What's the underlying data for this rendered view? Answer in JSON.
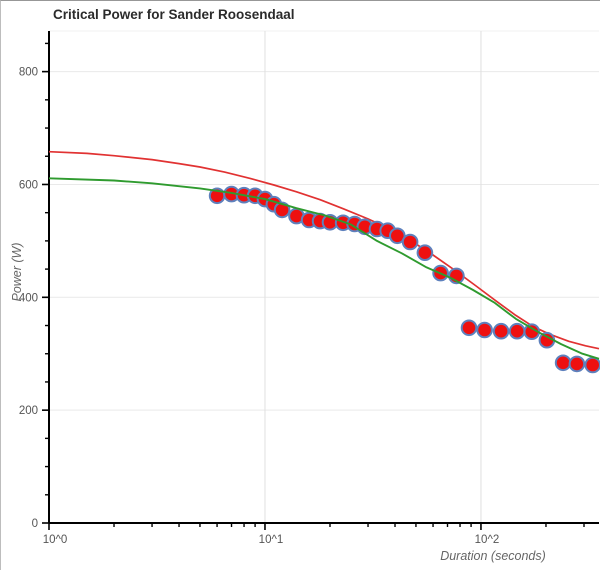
{
  "chart_data": {
    "type": "scatter",
    "title": "Critical Power for Sander Roosendaal",
    "xlabel": "Duration (seconds)",
    "ylabel": "Power (W)",
    "x_scale": "log10",
    "xlim": [
      1,
      352
    ],
    "ylim": [
      0,
      872
    ],
    "grid": {
      "h_lines": [
        200,
        400,
        600,
        800
      ],
      "v_lines": [
        10,
        100
      ],
      "h_color": "#e9e9e9",
      "v_color": "#e0e0e0",
      "top_border_color": "#f0f0f0"
    },
    "x_major_ticks": [
      {
        "t": 1,
        "label": "10^0"
      },
      {
        "t": 10,
        "label": "10^1"
      },
      {
        "t": 100,
        "label": "10^2"
      }
    ],
    "x_minor_ticks": [
      2,
      3,
      4,
      5,
      6,
      7,
      8,
      9,
      20,
      30,
      40,
      50,
      60,
      70,
      80,
      90,
      200,
      300
    ],
    "y_major_ticks": [
      0,
      200,
      400,
      600,
      800
    ],
    "y_minor_ticks": [
      50,
      100,
      150,
      250,
      300,
      350,
      450,
      500,
      550,
      650,
      700,
      750,
      850
    ],
    "colors": {
      "point_fill": "#ee1010",
      "point_stroke": "#5e81bd",
      "red_curve": "#e13232",
      "green_curve": "#2f9b2f",
      "axis_line": "#000000",
      "tick_label": "#555555",
      "title": "#2b2b2b",
      "axis_title": "#666666"
    },
    "series": [
      {
        "name": "power-duration-points",
        "type": "scatter",
        "points": [
          [
            6,
            580
          ],
          [
            7,
            583
          ],
          [
            8,
            581
          ],
          [
            9,
            580
          ],
          [
            10,
            574
          ],
          [
            11,
            565
          ],
          [
            12,
            555
          ],
          [
            14,
            544
          ],
          [
            16,
            537
          ],
          [
            18,
            535
          ],
          [
            20,
            533
          ],
          [
            23,
            532
          ],
          [
            26,
            530
          ],
          [
            29,
            525
          ],
          [
            33,
            521
          ],
          [
            37,
            518
          ],
          [
            41,
            509
          ],
          [
            47,
            498
          ],
          [
            55,
            479
          ],
          [
            65,
            443
          ],
          [
            77,
            438
          ],
          [
            88,
            346
          ],
          [
            104,
            342
          ],
          [
            124,
            340
          ],
          [
            147,
            340
          ],
          [
            172,
            339
          ],
          [
            202,
            324
          ],
          [
            240,
            284
          ],
          [
            278,
            282
          ],
          [
            329,
            280
          ]
        ]
      },
      {
        "name": "red-model-curve",
        "type": "line",
        "points": [
          [
            1,
            658
          ],
          [
            1.5,
            655
          ],
          [
            2,
            651
          ],
          [
            3,
            644
          ],
          [
            4,
            637
          ],
          [
            5,
            631
          ],
          [
            6.5,
            622
          ],
          [
            8.5,
            611
          ],
          [
            11,
            599
          ],
          [
            14,
            587
          ],
          [
            18,
            573
          ],
          [
            23,
            557
          ],
          [
            30,
            539
          ],
          [
            38,
            521
          ],
          [
            48,
            499
          ],
          [
            60,
            475
          ],
          [
            75,
            449
          ],
          [
            95,
            420
          ],
          [
            118,
            393
          ],
          [
            145,
            368
          ],
          [
            175,
            348
          ],
          [
            210,
            334
          ],
          [
            255,
            322
          ],
          [
            305,
            314
          ],
          [
            352,
            309
          ]
        ]
      },
      {
        "name": "green-model-curve",
        "type": "line",
        "points": [
          [
            1,
            611
          ],
          [
            2,
            607
          ],
          [
            3,
            602
          ],
          [
            5,
            593
          ],
          [
            7,
            585
          ],
          [
            10,
            574
          ],
          [
            14,
            558
          ],
          [
            19,
            545
          ],
          [
            25,
            529
          ],
          [
            33,
            500
          ],
          [
            43,
            478
          ],
          [
            56,
            453
          ],
          [
            72,
            435
          ],
          [
            92,
            413
          ],
          [
            115,
            391
          ],
          [
            145,
            362
          ],
          [
            185,
            338
          ],
          [
            235,
            317
          ],
          [
            295,
            300
          ],
          [
            352,
            291
          ]
        ]
      }
    ]
  }
}
